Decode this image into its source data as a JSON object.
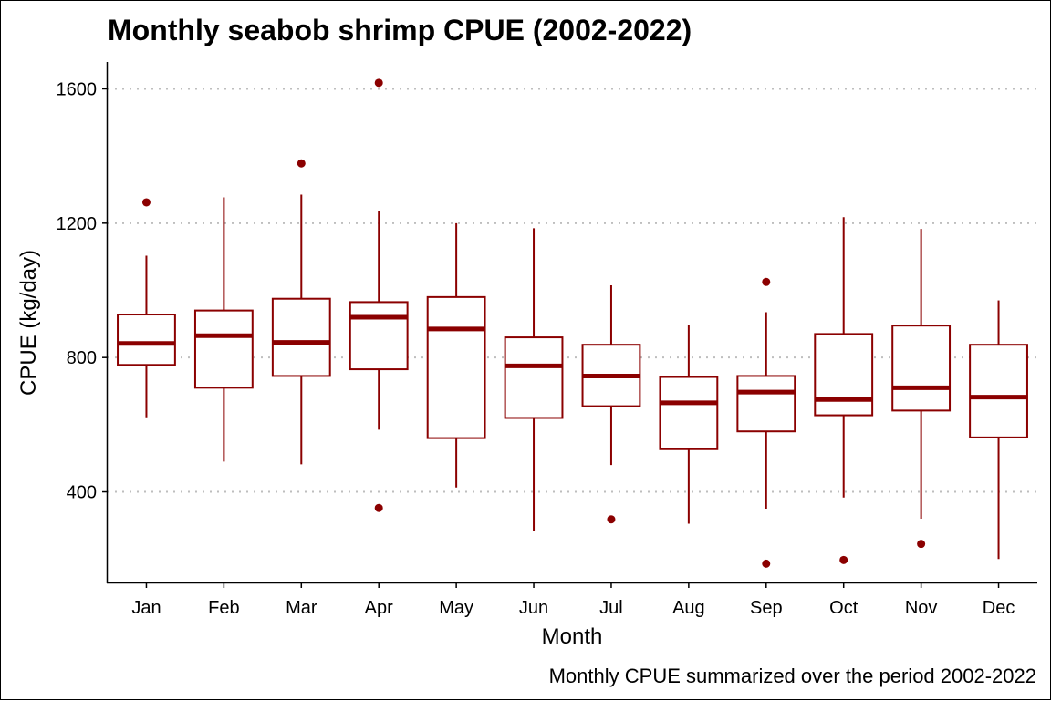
{
  "chart_data": {
    "type": "box",
    "title": "Monthly seabob shrimp CPUE (2002-2022)",
    "xlabel": "Month",
    "ylabel": "CPUE (kg/day)",
    "caption": "Monthly CPUE summarized over the period 2002-2022",
    "ylim": [
      130,
      1680
    ],
    "yticks": [
      400,
      800,
      1200,
      1600
    ],
    "grid": "horizontal-dotted",
    "color": "#8b0000",
    "grid_color": "#bebebe",
    "categories": [
      "Jan",
      "Feb",
      "Mar",
      "Apr",
      "May",
      "Jun",
      "Jul",
      "Aug",
      "Sep",
      "Oct",
      "Nov",
      "Dec"
    ],
    "boxes": [
      {
        "min": 622,
        "q1": 778,
        "median": 842,
        "q3": 928,
        "max": 1103,
        "outliers": [
          1262
        ]
      },
      {
        "min": 490,
        "q1": 710,
        "median": 865,
        "q3": 940,
        "max": 1277,
        "outliers": []
      },
      {
        "min": 482,
        "q1": 745,
        "median": 845,
        "q3": 975,
        "max": 1285,
        "outliers": [
          1378
        ]
      },
      {
        "min": 585,
        "q1": 765,
        "median": 920,
        "q3": 965,
        "max": 1237,
        "outliers": [
          1618,
          352
        ]
      },
      {
        "min": 413,
        "q1": 560,
        "median": 885,
        "q3": 980,
        "max": 1200,
        "outliers": []
      },
      {
        "min": 283,
        "q1": 620,
        "median": 775,
        "q3": 860,
        "max": 1185,
        "outliers": []
      },
      {
        "min": 480,
        "q1": 655,
        "median": 745,
        "q3": 838,
        "max": 1015,
        "outliers": [
          318
        ]
      },
      {
        "min": 305,
        "q1": 527,
        "median": 665,
        "q3": 742,
        "max": 898,
        "outliers": []
      },
      {
        "min": 350,
        "q1": 580,
        "median": 697,
        "q3": 745,
        "max": 935,
        "outliers": [
          1025,
          186
        ]
      },
      {
        "min": 383,
        "q1": 628,
        "median": 675,
        "q3": 870,
        "max": 1218,
        "outliers": [
          197
        ]
      },
      {
        "min": 320,
        "q1": 642,
        "median": 710,
        "q3": 895,
        "max": 1183,
        "outliers": [
          245
        ]
      },
      {
        "min": 200,
        "q1": 562,
        "median": 682,
        "q3": 838,
        "max": 970,
        "outliers": []
      }
    ]
  }
}
